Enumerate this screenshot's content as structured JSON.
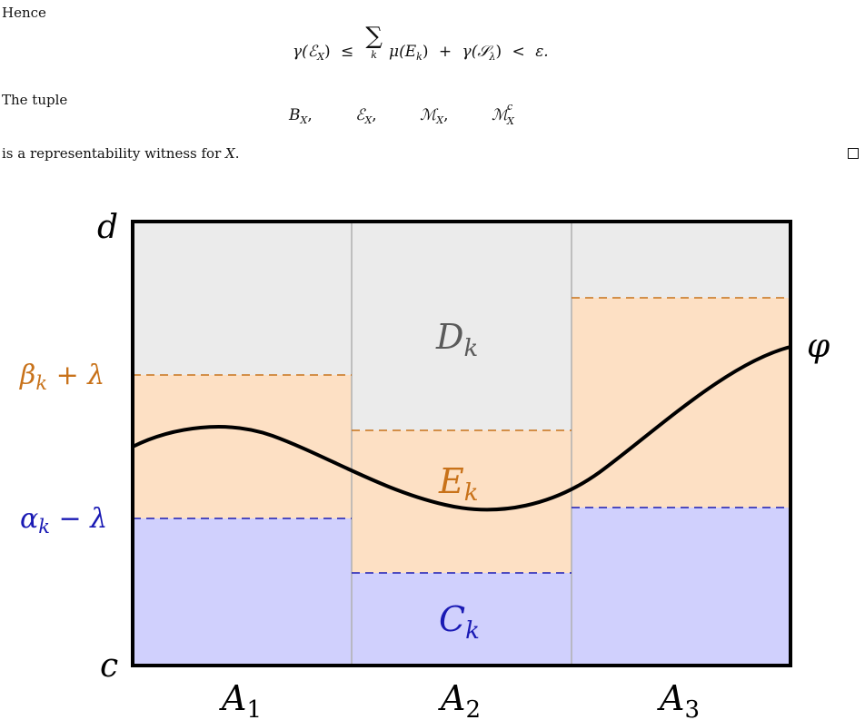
{
  "text": {
    "hence": "Hence",
    "the_tuple": "The tuple",
    "witness_prefix": "is a representability witness for",
    "witness_var": "X",
    "witness_suffix": "."
  },
  "equation_1": {
    "lhs_gamma": "γ(",
    "lhs_E": "ℰ",
    "lhs_sub": "X",
    "lhs_close": ")",
    "leq": "≤",
    "sum": "∑",
    "sum_index": "k",
    "mu": "μ(",
    "E": "E",
    "E_sub": "k",
    "mu_close": ")",
    "plus": "+",
    "gamma2": "γ(",
    "S": "𝒮",
    "S_sub": "λ",
    "gamma2_close": ")",
    "lt": "<",
    "eps": "ε."
  },
  "tuple": {
    "B": "B",
    "B_sub": "X",
    "comma1": ",",
    "E": "ℰ",
    "E_sub": "X",
    "comma2": ",",
    "M": "ℳ",
    "M_sub": "X",
    "comma3": ",",
    "Mc": "ℳ",
    "Mc_sup": "c",
    "Mc_sub": "X"
  },
  "figure": {
    "y_top_label": "d",
    "y_bottom_label": "c",
    "beta_label": "β",
    "beta_sub": "k",
    "beta_rest": " + λ",
    "alpha_label": "α",
    "alpha_sub": "k",
    "alpha_rest": " − λ",
    "region_D": "D",
    "region_D_sub": "k",
    "region_E": "E",
    "region_E_sub": "k",
    "region_C": "C",
    "region_C_sub": "k",
    "curve_label": "φ",
    "x_labels": [
      {
        "main": "A",
        "sub": "1"
      },
      {
        "main": "A",
        "sub": "2"
      },
      {
        "main": "A",
        "sub": "3"
      }
    ],
    "colors": {
      "D_fill": "#ebebeb",
      "E_fill": "#fde0c4",
      "C_fill": "#d0d0fd",
      "orange": "#c8721a",
      "blue": "#1a1ab4",
      "gray_text": "#5a5a5a",
      "divider": "#b0b0b0"
    }
  }
}
